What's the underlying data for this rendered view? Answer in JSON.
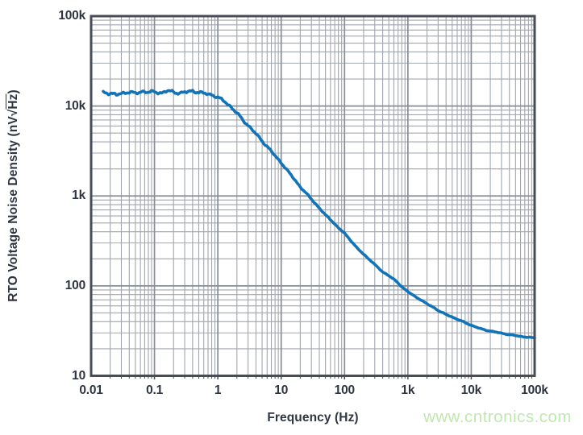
{
  "watermark": {
    "text": "www.cntronics.com",
    "color": "#b9e6a6"
  },
  "colors": {
    "curve": "#1274b8",
    "grid_minor": "#a1a6ae",
    "grid_major": "#878d97",
    "frame": "#474c56",
    "text": "#2f3540",
    "background": "#ffffff"
  },
  "chart_data": {
    "type": "line",
    "title": "",
    "xlabel": "Frequency (Hz)",
    "ylabel": "RTO Voltage Noise Density (nV√Hz)",
    "ylabel_parts": {
      "prefix": "RTO Voltage Noise Density (nV√",
      "radicand": "Hz",
      "suffix": ")"
    },
    "x_scale": "log",
    "y_scale": "log",
    "xlim": [
      0.01,
      100000
    ],
    "ylim": [
      10,
      100000
    ],
    "grid": "both-major-and-minor",
    "legend": "none",
    "x_ticks": [
      {
        "value": 0.01,
        "label": "0.01"
      },
      {
        "value": 0.1,
        "label": "0.1"
      },
      {
        "value": 1,
        "label": "1"
      },
      {
        "value": 10,
        "label": "10"
      },
      {
        "value": 100,
        "label": "100"
      },
      {
        "value": 1000,
        "label": "1k"
      },
      {
        "value": 10000,
        "label": "10k"
      },
      {
        "value": 100000,
        "label": "100k"
      }
    ],
    "y_ticks": [
      {
        "value": 10,
        "label": "10"
      },
      {
        "value": 100,
        "label": "100"
      },
      {
        "value": 1000,
        "label": "1k"
      },
      {
        "value": 10000,
        "label": "10k"
      },
      {
        "value": 100000,
        "label": "100k"
      }
    ],
    "series": [
      {
        "name": "RTO voltage noise density",
        "color": "#1274b8",
        "points": [
          [
            0.0155,
            14200
          ],
          [
            0.018,
            14000
          ],
          [
            0.021,
            13800
          ],
          [
            0.025,
            13200
          ],
          [
            0.03,
            13900
          ],
          [
            0.04,
            14300
          ],
          [
            0.05,
            13800
          ],
          [
            0.065,
            14600
          ],
          [
            0.08,
            14200
          ],
          [
            0.1,
            14400
          ],
          [
            0.13,
            14000
          ],
          [
            0.16,
            14700
          ],
          [
            0.2,
            14400
          ],
          [
            0.25,
            13900
          ],
          [
            0.32,
            14300
          ],
          [
            0.4,
            14800
          ],
          [
            0.5,
            14100
          ],
          [
            0.63,
            13800
          ],
          [
            0.8,
            13400
          ],
          [
            1.0,
            12400
          ],
          [
            1.3,
            11200
          ],
          [
            1.6,
            9800
          ],
          [
            2.0,
            8300
          ],
          [
            2.5,
            7000
          ],
          [
            3.2,
            5800
          ],
          [
            4.0,
            4900
          ],
          [
            5.0,
            4100
          ],
          [
            6.3,
            3400
          ],
          [
            8.0,
            2800
          ],
          [
            10,
            2350
          ],
          [
            13,
            1850
          ],
          [
            16,
            1550
          ],
          [
            20,
            1260
          ],
          [
            25,
            1060
          ],
          [
            32,
            880
          ],
          [
            40,
            730
          ],
          [
            50,
            615
          ],
          [
            63,
            530
          ],
          [
            80,
            440
          ],
          [
            100,
            385
          ],
          [
            130,
            310
          ],
          [
            160,
            260
          ],
          [
            200,
            225
          ],
          [
            250,
            195
          ],
          [
            320,
            165
          ],
          [
            400,
            143
          ],
          [
            500,
            130
          ],
          [
            630,
            115
          ],
          [
            800,
            98
          ],
          [
            1000,
            86
          ],
          [
            1300,
            76
          ],
          [
            1600,
            70
          ],
          [
            2000,
            63
          ],
          [
            2500,
            58
          ],
          [
            3200,
            52
          ],
          [
            4000,
            48
          ],
          [
            5000,
            45
          ],
          [
            6300,
            42
          ],
          [
            8000,
            39
          ],
          [
            10000,
            36.5
          ],
          [
            13000,
            34
          ],
          [
            16000,
            32.5
          ],
          [
            20000,
            31.5
          ],
          [
            25000,
            30.5
          ],
          [
            32000,
            29.5
          ],
          [
            40000,
            28.7
          ],
          [
            50000,
            28
          ],
          [
            63000,
            27.3
          ],
          [
            80000,
            26.8
          ],
          [
            100000,
            26.3
          ]
        ]
      }
    ]
  }
}
